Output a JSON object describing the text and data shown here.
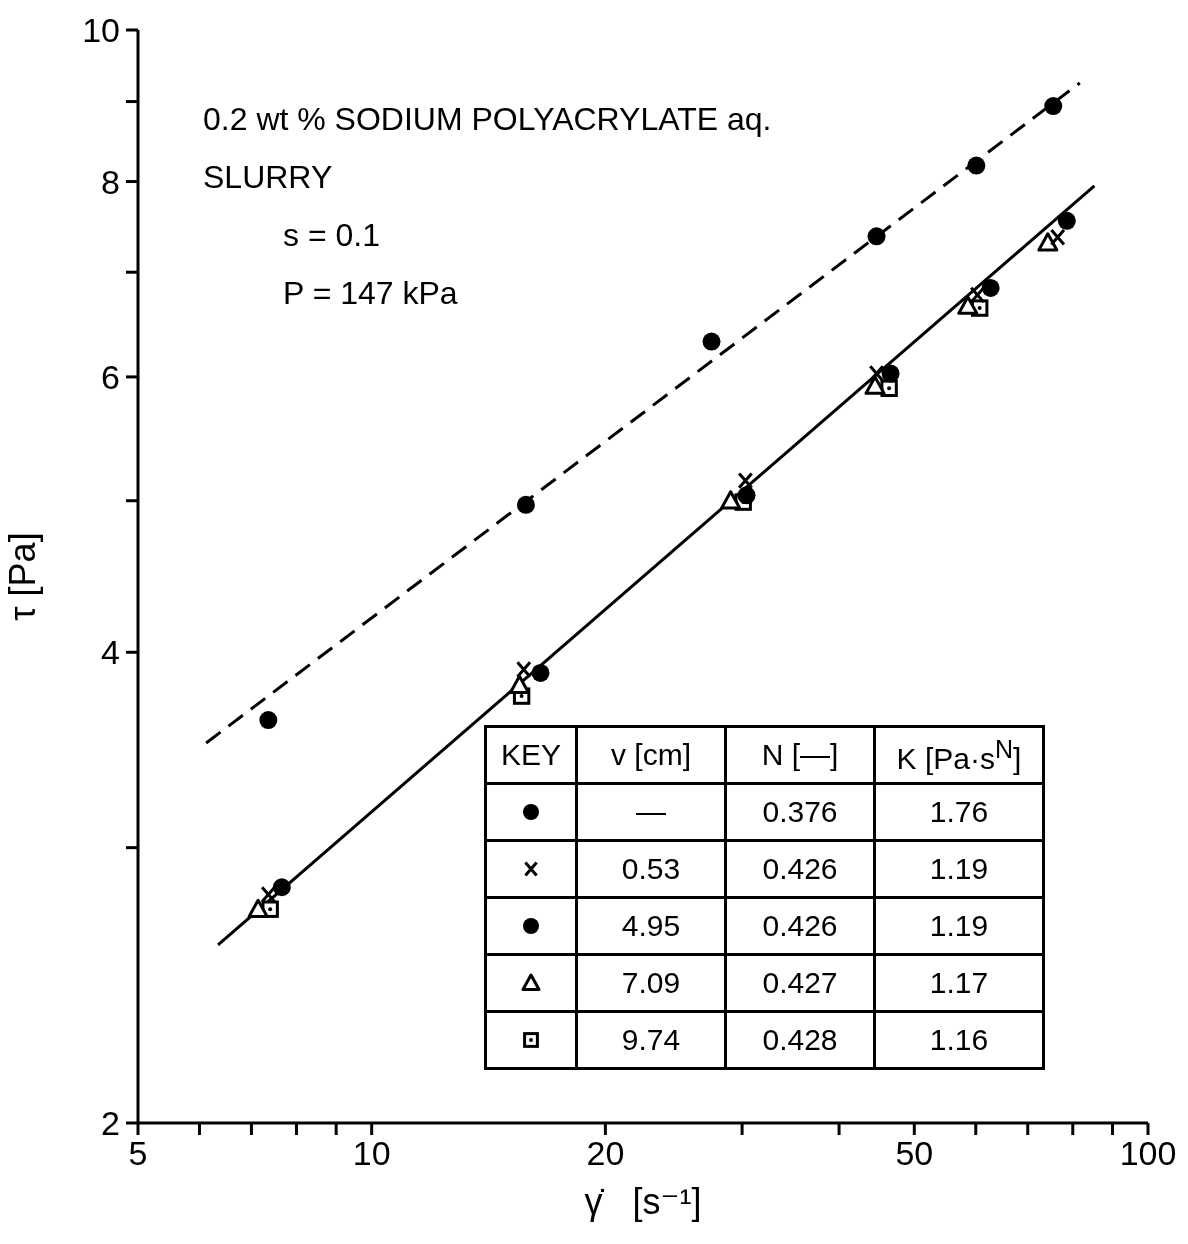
{
  "chart_data": {
    "type": "scatter",
    "xlabel": "γ̇   [s⁻¹]",
    "ylabel": "τ   [Pa]",
    "log": "xy",
    "xlim": [
      5,
      100
    ],
    "xticks": [
      5,
      {
        "value": 6,
        "label": null
      },
      {
        "value": 7,
        "label": null
      },
      {
        "value": 8,
        "label": null
      },
      {
        "value": 9,
        "label": null
      },
      10,
      20,
      {
        "value": 30,
        "label": null
      },
      {
        "value": 40,
        "label": null
      },
      50,
      {
        "value": 60,
        "label": null
      },
      {
        "value": 70,
        "label": null
      },
      {
        "value": 80,
        "label": null
      },
      {
        "value": 90,
        "label": null
      },
      100
    ],
    "ylim": [
      2,
      10
    ],
    "yticks": [
      2,
      {
        "value": 3,
        "label": null
      },
      4,
      {
        "value": 5,
        "label": null
      },
      6,
      {
        "value": 7,
        "label": null
      },
      8,
      {
        "value": 9,
        "label": null
      },
      10
    ],
    "annotations": [
      "0.2 wt % SODIUM POLYACRYLATE aq.",
      "SLURRY",
      "s = 0.1",
      "P = 147 kPa",
      "KEY",
      "v [cm]",
      "N [—]",
      "K [Pa·s$^{N}$]",
      "—",
      "0.376",
      "1.76",
      "0.53",
      "0.426",
      "1.19",
      "4.95",
      "0.426",
      "1.19",
      "7.09",
      "0.427",
      "1.17",
      "9.74",
      "0.428",
      "1.16"
    ],
    "series": [
      {
        "marker": "circle",
        "color": "#000000",
        "x": [
          7.36,
          15.8,
          27.4,
          44.7,
          60.1,
          75.5
        ],
        "values": [
          3.62,
          4.97,
          6.32,
          7.38,
          8.19,
          8.94
        ]
      },
      {
        "marker": "cross",
        "color": "#000000",
        "x": [
          7.36,
          15.7,
          30.3,
          44.7,
          60.3,
          76.5
        ],
        "values": [
          2.8,
          3.9,
          5.15,
          6.03,
          6.77,
          7.37
        ]
      },
      {
        "marker": "circle",
        "color": "#000000",
        "x": [
          7.66,
          16.5,
          30.4,
          46.6,
          62.7,
          78.6
        ],
        "values": [
          2.83,
          3.88,
          5.04,
          6.03,
          6.84,
          7.55
        ]
      },
      {
        "marker": "triangle",
        "color": "#000000",
        "x": [
          7.14,
          15.5,
          29,
          44.5,
          58.6,
          74.3
        ],
        "values": [
          2.74,
          3.81,
          5,
          5.92,
          6.66,
          7.31
        ]
      },
      {
        "marker": "square",
        "color": "#000000",
        "x": [
          7.4,
          15.6,
          30.1,
          46.4,
          60.7,
          null
        ],
        "values": [
          2.74,
          3.75,
          4.99,
          5.9,
          6.64,
          null
        ]
      },
      {
        "type": "line",
        "line_style": "dashed",
        "color": "#000000",
        "x": [
          6.12,
          81.7
        ],
        "values": [
          3.5,
          9.25
        ]
      },
      {
        "type": "line",
        "line_style": "solid",
        "color": "#000000",
        "x": [
          6.34,
          85.3
        ],
        "values": [
          2.6,
          7.95
        ]
      }
    ]
  }
}
